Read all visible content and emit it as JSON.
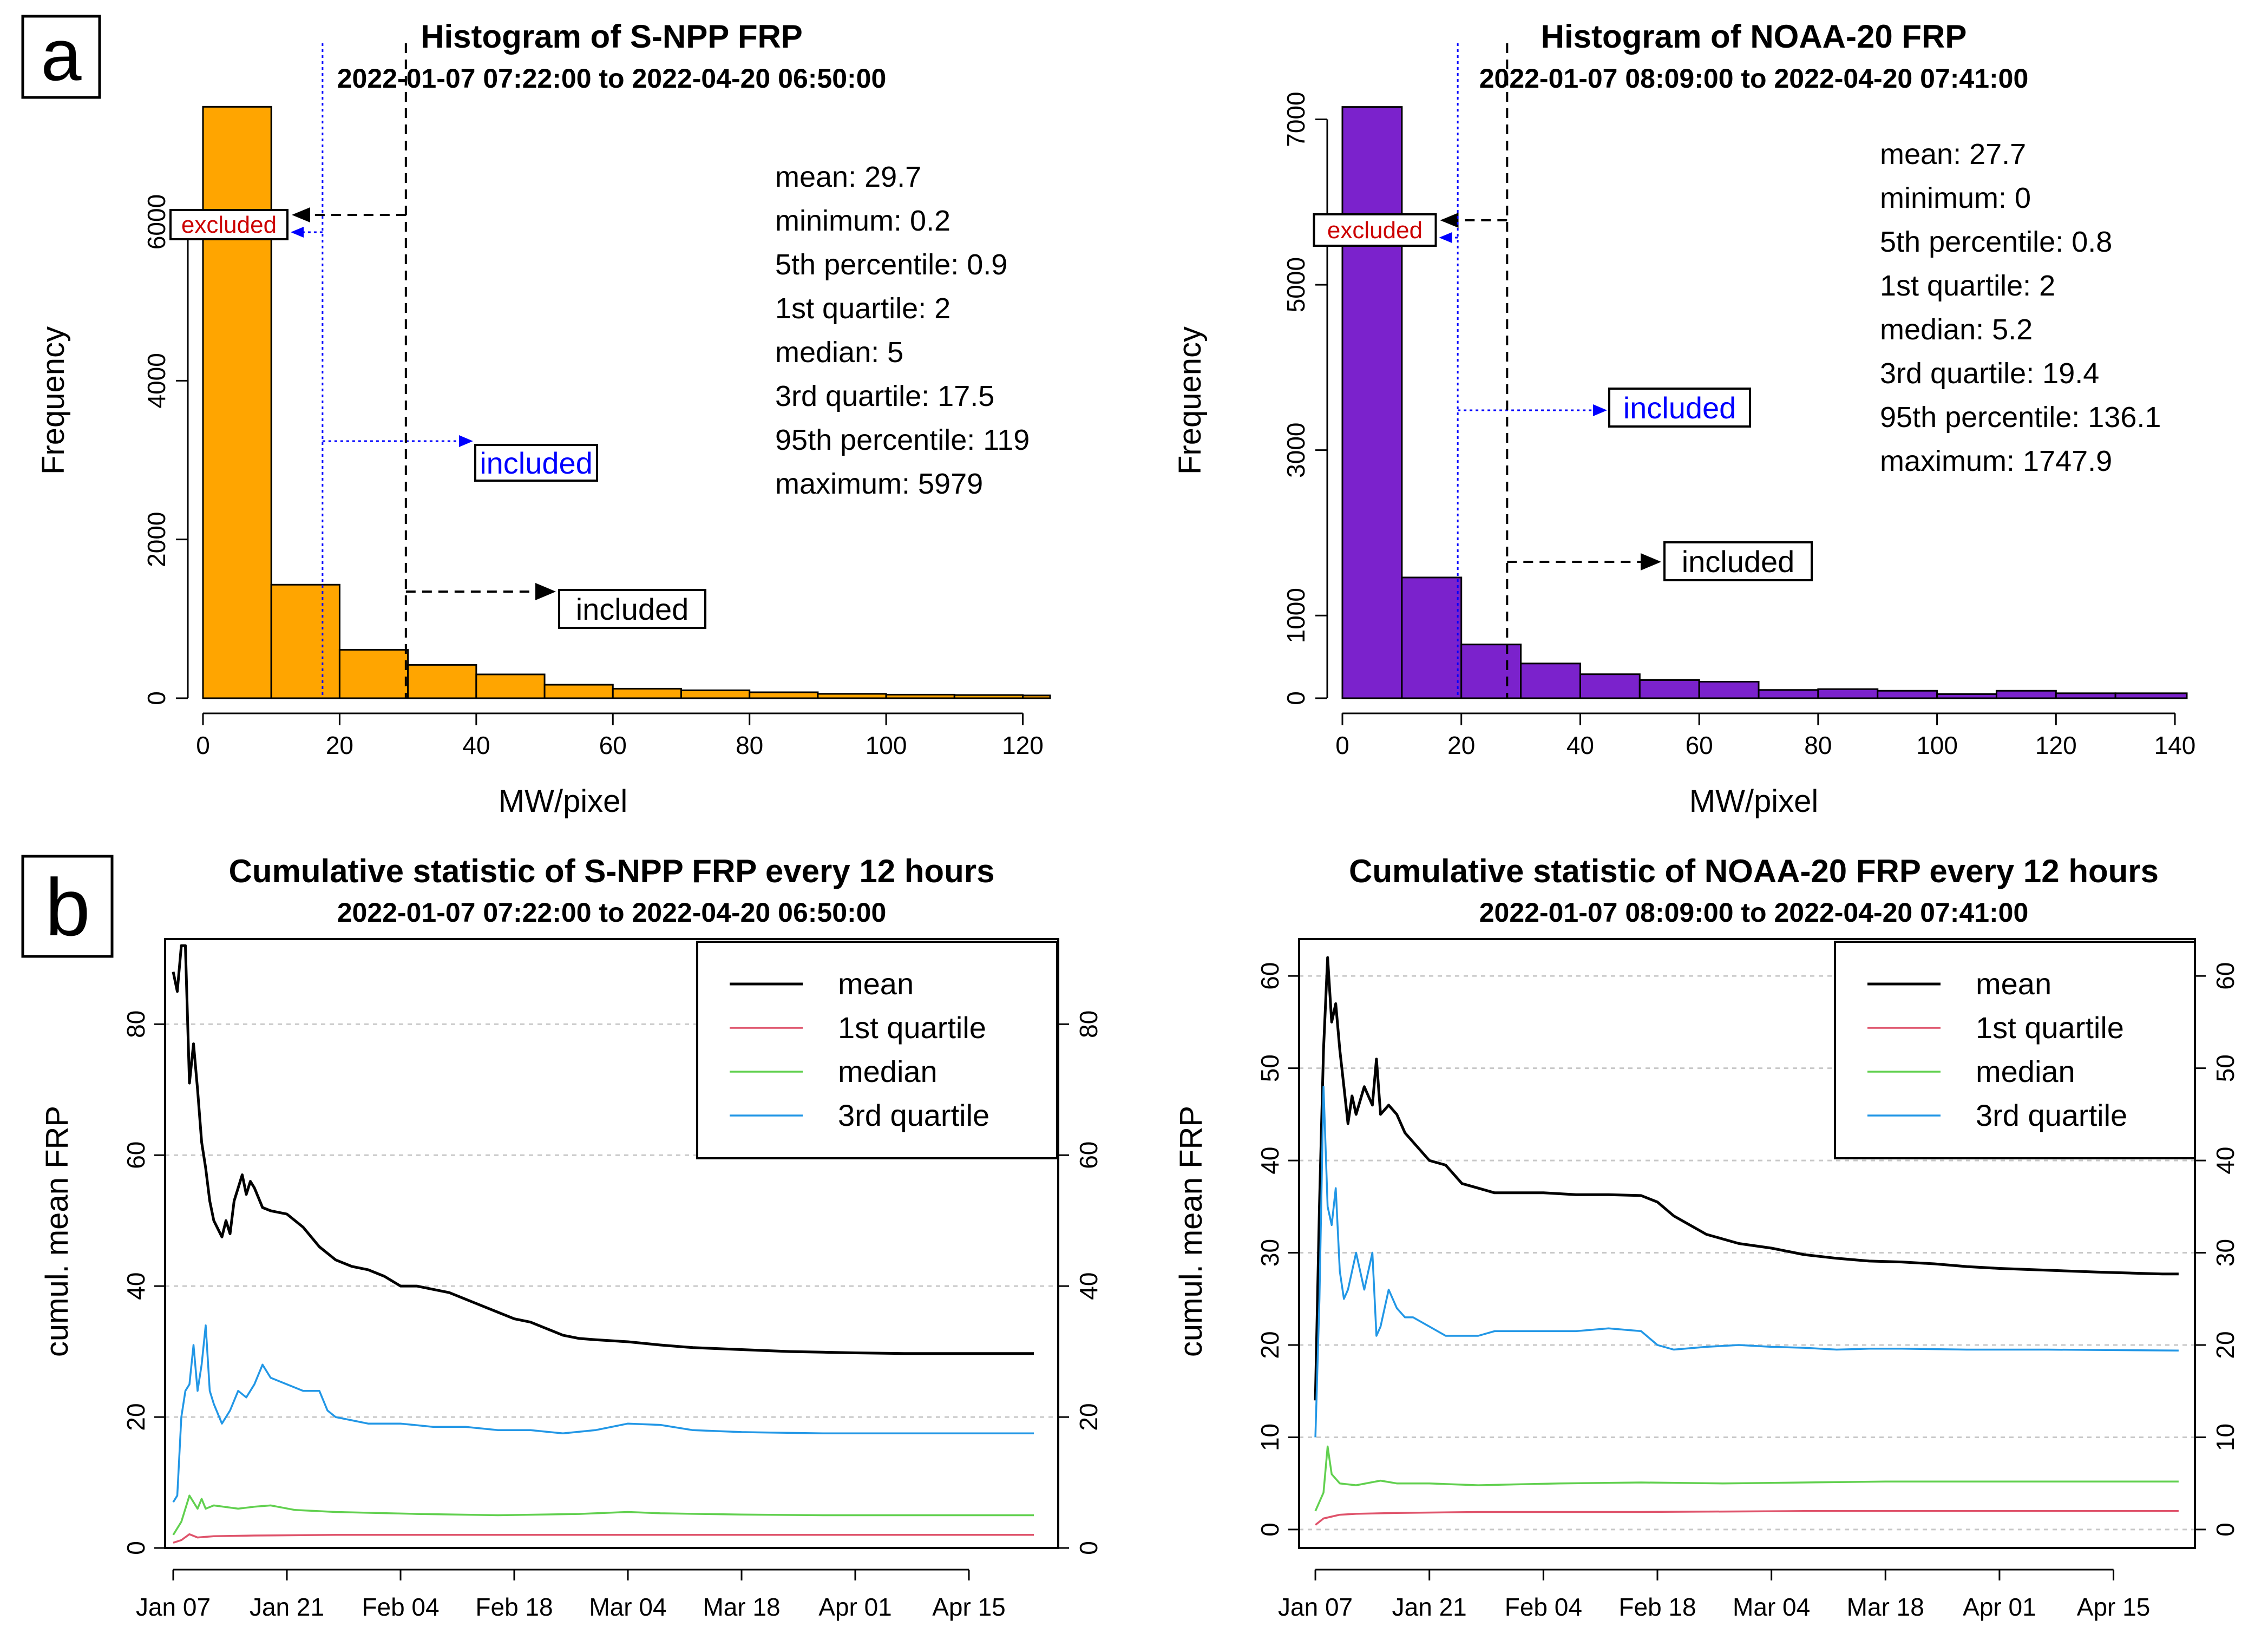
{
  "panel_labels": {
    "a": "a",
    "b": "b"
  },
  "colors": {
    "snpp_bar": "#FFA500",
    "noaa_bar": "#7B22CC",
    "mean": "#000000",
    "q1": "#DF536B",
    "median": "#61D04F",
    "q3": "#2297E6",
    "blue_marker": "#0000FF",
    "excluded_text": "#CC0000"
  },
  "chart_data": [
    {
      "type": "bar",
      "id": "hist_snpp",
      "title": "Histogram of S-NPP FRP",
      "subtitle": "2022-01-07 07:22:00 to 2022-04-20 06:50:00",
      "xlabel": "MW/pixel",
      "ylabel": "Frequency",
      "xlim": [
        0,
        124
      ],
      "ylim": [
        0,
        7500
      ],
      "xticks": [
        0,
        20,
        40,
        60,
        80,
        100,
        120
      ],
      "yticks": [
        0,
        2000,
        4000,
        6000
      ],
      "bin_edges": [
        0,
        10,
        20,
        30,
        40,
        50,
        60,
        70,
        80,
        90,
        100,
        110,
        120,
        124
      ],
      "values": [
        7450,
        1430,
        610,
        420,
        300,
        170,
        120,
        100,
        75,
        55,
        45,
        40,
        35
      ],
      "bar_color": "#FFA500",
      "mean_line": 29.7,
      "blue_line": 17.5,
      "stats": [
        "mean: 29.7",
        "minimum: 0.2",
        "5th percentile: 0.9",
        "1st quartile: 2",
        "median: 5",
        "3rd quartile: 17.5",
        "95th percentile: 119",
        "maximum: 5979"
      ],
      "annotations": {
        "excluded": "excluded",
        "included_blue": "included",
        "included_black": "included"
      }
    },
    {
      "type": "bar",
      "id": "hist_noaa",
      "title": "Histogram of NOAA-20 FRP",
      "subtitle": "2022-01-07 08:09:00 to 2022-04-20 07:41:00",
      "xlabel": "MW/pixel",
      "ylabel": "Frequency",
      "xlim": [
        0,
        142
      ],
      "ylim": [
        0,
        7200
      ],
      "xticks": [
        0,
        20,
        40,
        60,
        80,
        100,
        120,
        140
      ],
      "yticks": [
        0,
        1000,
        3000,
        5000,
        7000
      ],
      "bin_edges": [
        0,
        10,
        20,
        30,
        40,
        50,
        60,
        70,
        80,
        90,
        100,
        110,
        120,
        130,
        142
      ],
      "values": [
        7150,
        1460,
        650,
        420,
        290,
        220,
        200,
        100,
        110,
        90,
        50,
        90,
        60,
        60
      ],
      "bar_color": "#7B22CC",
      "mean_line": 27.7,
      "blue_line": 19.4,
      "stats": [
        "mean: 27.7",
        "minimum: 0",
        "5th percentile: 0.8",
        "1st quartile: 2",
        "median: 5.2",
        "3rd quartile: 19.4",
        "95th percentile: 136.1",
        "maximum: 1747.9"
      ],
      "annotations": {
        "excluded": "excluded",
        "included_blue": "included",
        "included_black": "included"
      }
    },
    {
      "type": "line",
      "id": "cum_snpp",
      "title": "Cumulative statistic of S-NPP FRP every 12 hours",
      "subtitle": "2022-01-07 07:22:00 to 2022-04-20 06:50:00",
      "ylabel": "cumul. mean FRP",
      "xlabel": "",
      "x_unit": "days since Jan 07",
      "xlim": [
        -1,
        109
      ],
      "ylim": [
        0,
        93
      ],
      "yticks": [
        0,
        20,
        40,
        60,
        80
      ],
      "xtick_labels": [
        "Jan 07",
        "Jan 21",
        "Feb 04",
        "Feb 18",
        "Mar 04",
        "Mar 18",
        "Apr 01",
        "Apr 15"
      ],
      "xtick_positions": [
        0,
        14,
        28,
        42,
        56,
        70,
        84,
        98
      ],
      "grid": true,
      "legend": [
        "mean",
        "1st quartile",
        "median",
        "3rd quartile"
      ],
      "series": [
        {
          "name": "mean",
          "color": "#000000",
          "x": [
            0,
            0.5,
            1,
            1.5,
            2,
            2.5,
            3,
            3.5,
            4,
            4.5,
            5,
            6,
            6.5,
            7,
            7.5,
            8,
            8.5,
            9,
            9.5,
            10,
            11,
            12,
            14,
            16,
            18,
            19,
            20,
            22,
            24,
            26,
            28,
            30,
            32,
            34,
            36,
            38,
            40,
            42,
            44,
            46,
            48,
            50,
            52,
            56,
            60,
            64,
            68,
            72,
            76,
            80,
            84,
            90,
            96,
            100,
            104,
            106
          ],
          "values": [
            88,
            85,
            92,
            92,
            71,
            77,
            70,
            62,
            58,
            53,
            50,
            47.5,
            50,
            48,
            53,
            55,
            57,
            54,
            56,
            55,
            52,
            51.5,
            51,
            49,
            46,
            45,
            44,
            43,
            42.5,
            41.5,
            40,
            40,
            39.5,
            39,
            38,
            37,
            36,
            35,
            34.5,
            33.5,
            32.5,
            32,
            31.8,
            31.5,
            31,
            30.6,
            30.4,
            30.2,
            30,
            29.9,
            29.8,
            29.7,
            29.7,
            29.7,
            29.7,
            29.7
          ]
        },
        {
          "name": "1st quartile",
          "color": "#DF536B",
          "x": [
            0,
            1,
            2,
            3,
            5,
            10,
            20,
            40,
            60,
            80,
            106
          ],
          "values": [
            0.8,
            1.2,
            2.1,
            1.6,
            1.8,
            1.9,
            2,
            2,
            2,
            2,
            2
          ]
        },
        {
          "name": "median",
          "color": "#61D04F",
          "x": [
            0,
            1,
            2,
            3,
            3.5,
            4,
            5,
            8,
            10,
            12,
            15,
            20,
            30,
            40,
            50,
            56,
            60,
            70,
            80,
            90,
            106
          ],
          "values": [
            2,
            4,
            8,
            6,
            7.5,
            6,
            6.5,
            6,
            6.3,
            6.5,
            5.8,
            5.5,
            5.2,
            5,
            5.2,
            5.5,
            5.3,
            5.1,
            5,
            5,
            5
          ]
        },
        {
          "name": "3rd quartile",
          "color": "#2297E6",
          "x": [
            0,
            0.5,
            1,
            1.5,
            2,
            2.5,
            3,
            3.5,
            4,
            4.5,
            5,
            6,
            7,
            8,
            9,
            10,
            11,
            12,
            14,
            16,
            18,
            19,
            20,
            22,
            24,
            28,
            32,
            36,
            40,
            44,
            48,
            52,
            56,
            60,
            64,
            70,
            80,
            90,
            106
          ],
          "values": [
            7,
            8,
            20,
            24,
            25,
            31,
            24,
            28,
            34,
            24,
            22,
            19,
            21,
            24,
            23,
            25,
            28,
            26,
            25,
            24,
            24,
            21,
            20,
            19.5,
            19,
            19,
            18.5,
            18.5,
            18,
            18,
            17.5,
            18,
            19,
            18.8,
            18,
            17.7,
            17.5,
            17.5,
            17.5
          ]
        }
      ]
    },
    {
      "type": "line",
      "id": "cum_noaa",
      "title": "Cumulative statistic of NOAA-20 FRP every 12 hours",
      "subtitle": "2022-01-07 08:09:00 to 2022-04-20 07:41:00",
      "ylabel": "cumul. mean FRP",
      "xlabel": "",
      "x_unit": "days since Jan 07",
      "xlim": [
        -2,
        108
      ],
      "ylim": [
        -2,
        64
      ],
      "yticks": [
        0,
        10,
        20,
        30,
        40,
        50,
        60
      ],
      "xtick_labels": [
        "Jan 07",
        "Jan 21",
        "Feb 04",
        "Feb 18",
        "Mar 04",
        "Mar 18",
        "Apr 01",
        "Apr 15"
      ],
      "xtick_positions": [
        0,
        14,
        28,
        42,
        56,
        70,
        84,
        98
      ],
      "grid": true,
      "legend": [
        "mean",
        "1st quartile",
        "median",
        "3rd quartile"
      ],
      "series": [
        {
          "name": "mean",
          "color": "#000000",
          "x": [
            0,
            0.5,
            1,
            1.5,
            2,
            2.5,
            3,
            3.5,
            4,
            4.5,
            5,
            6,
            7,
            7.5,
            8,
            9,
            10,
            11,
            12,
            14,
            16,
            18,
            20,
            22,
            24,
            28,
            32,
            36,
            40,
            42,
            44,
            46,
            48,
            50,
            52,
            56,
            60,
            64,
            68,
            72,
            76,
            80,
            84,
            90,
            96,
            100,
            104,
            106
          ],
          "values": [
            14,
            35,
            52,
            62,
            55,
            57,
            52,
            48,
            44,
            47,
            45,
            48,
            46,
            51,
            45,
            46,
            45,
            43,
            42,
            40,
            39.5,
            37.5,
            37,
            36.5,
            36.5,
            36.5,
            36.3,
            36.3,
            36.2,
            35.5,
            34,
            33,
            32,
            31.5,
            31,
            30.5,
            29.8,
            29.4,
            29.1,
            29,
            28.8,
            28.5,
            28.3,
            28.1,
            27.9,
            27.8,
            27.7,
            27.7
          ]
        },
        {
          "name": "1st quartile",
          "color": "#DF536B",
          "x": [
            0,
            1,
            2,
            3,
            5,
            10,
            20,
            40,
            60,
            80,
            106
          ],
          "values": [
            0.5,
            1.2,
            1.4,
            1.6,
            1.7,
            1.8,
            1.9,
            1.9,
            2,
            2,
            2
          ]
        },
        {
          "name": "median",
          "color": "#61D04F",
          "x": [
            0,
            1,
            1.5,
            2,
            3,
            5,
            8,
            10,
            14,
            20,
            30,
            40,
            50,
            60,
            70,
            80,
            90,
            106
          ],
          "values": [
            2,
            4,
            9,
            6,
            5,
            4.8,
            5.3,
            5,
            5,
            4.8,
            5,
            5.1,
            5,
            5.1,
            5.2,
            5.2,
            5.2,
            5.2
          ]
        },
        {
          "name": "3rd quartile",
          "color": "#2297E6",
          "x": [
            0,
            0.5,
            1,
            1.5,
            2,
            2.5,
            3,
            3.5,
            4,
            5,
            6,
            7,
            7.5,
            8,
            9,
            10,
            11,
            12,
            14,
            16,
            18,
            20,
            22,
            24,
            28,
            32,
            36,
            40,
            42,
            44,
            48,
            52,
            56,
            60,
            64,
            68,
            72,
            80,
            90,
            106
          ],
          "values": [
            10,
            25,
            48,
            35,
            33,
            37,
            28,
            25,
            26,
            30,
            26,
            30,
            21,
            22,
            26,
            24,
            23,
            23,
            22,
            21,
            21,
            21,
            21.5,
            21.5,
            21.5,
            21.5,
            21.8,
            21.5,
            20,
            19.5,
            19.8,
            20,
            19.8,
            19.7,
            19.5,
            19.6,
            19.6,
            19.5,
            19.5,
            19.4
          ]
        }
      ]
    }
  ]
}
